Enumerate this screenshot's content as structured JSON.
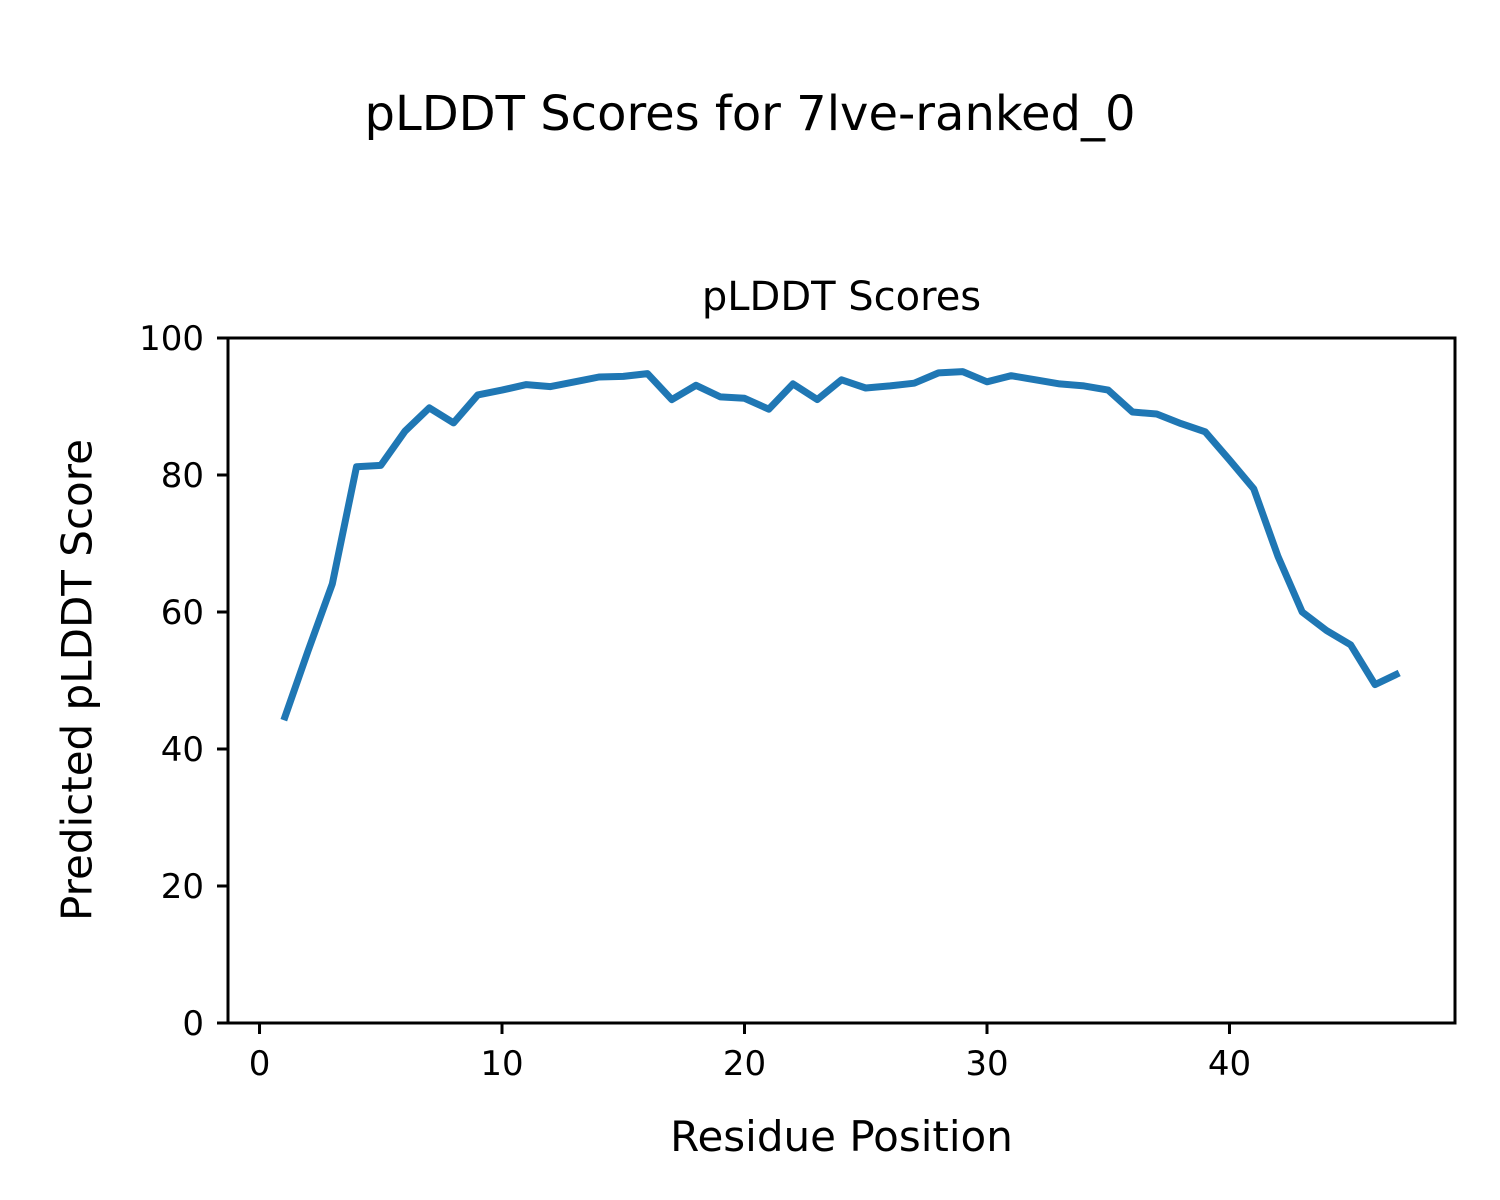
{
  "figure": {
    "suptitle": "pLDDT Scores for 7lve-ranked_0",
    "background": "#ffffff"
  },
  "chart_data": {
    "type": "line",
    "title": "pLDDT Scores",
    "xlabel": "Residue Position",
    "ylabel": "Predicted pLDDT Score",
    "x": [
      1,
      2,
      3,
      4,
      5,
      6,
      7,
      8,
      9,
      10,
      11,
      12,
      13,
      14,
      15,
      16,
      17,
      18,
      19,
      20,
      21,
      22,
      23,
      24,
      25,
      26,
      27,
      28,
      29,
      30,
      31,
      32,
      33,
      34,
      35,
      36,
      37,
      38,
      39,
      40,
      41,
      42,
      43,
      44,
      45,
      46,
      47
    ],
    "series": [
      {
        "name": "pLDDT",
        "color": "#1f77b4",
        "values": [
          44.2,
          54.3,
          64.1,
          81.2,
          81.4,
          86.4,
          89.8,
          87.6,
          91.7,
          92.4,
          93.2,
          92.9,
          93.6,
          94.3,
          94.4,
          94.8,
          91.0,
          93.1,
          91.4,
          91.2,
          89.6,
          93.3,
          91.0,
          93.9,
          92.7,
          93.0,
          93.4,
          94.9,
          95.1,
          93.6,
          94.5,
          93.9,
          93.3,
          93.0,
          92.4,
          89.2,
          88.9,
          87.5,
          86.3,
          82.2,
          78.0,
          68.1,
          60.0,
          57.3,
          55.2,
          49.4,
          51.1
        ]
      }
    ],
    "xlim": [
      -1.3,
      49.3
    ],
    "ylim": [
      0,
      100
    ],
    "xticks": [
      0,
      10,
      20,
      30,
      40
    ],
    "yticks": [
      0,
      20,
      40,
      60,
      80,
      100
    ],
    "grid": false,
    "legend": false,
    "axes_color": "#000000"
  }
}
